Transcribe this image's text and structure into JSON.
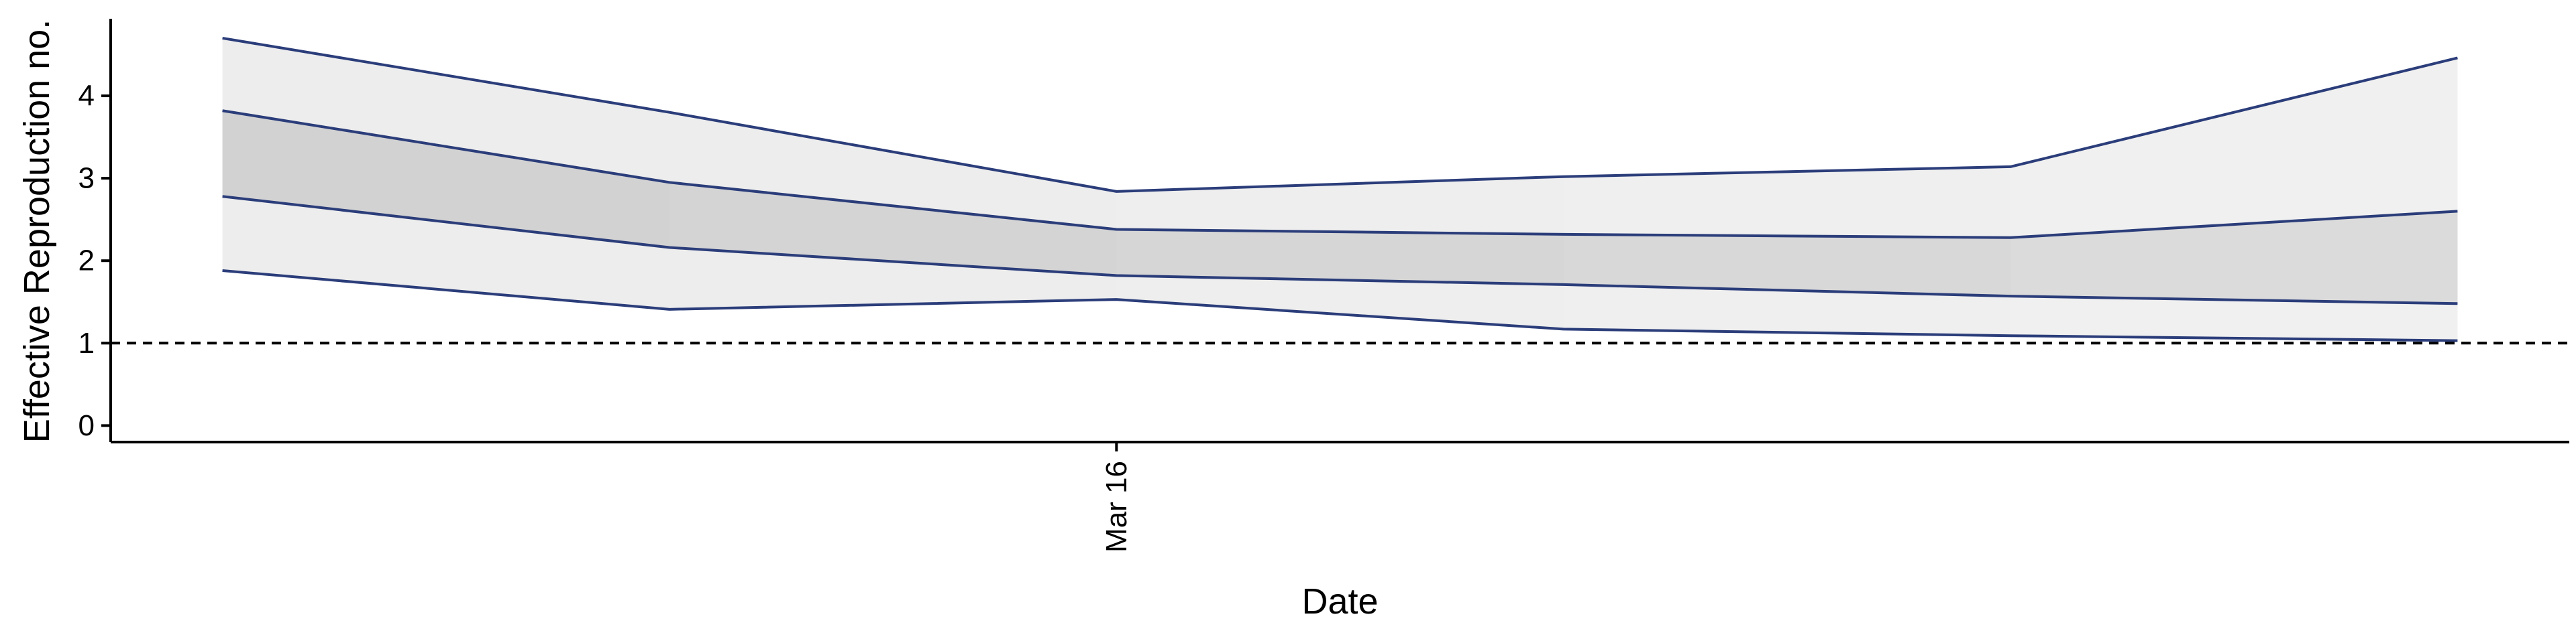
{
  "chart_data": {
    "type": "area",
    "title": "",
    "xlabel": "Date",
    "ylabel": "Effective Reproduction no.",
    "ylim": [
      -0.2,
      5.0
    ],
    "y_ticks": [
      0,
      1,
      2,
      3,
      4
    ],
    "x_tick_labels": [
      {
        "label": "Mar 16",
        "x": "2020-03-16"
      }
    ],
    "x_domain": [
      "2020-03-13.75",
      "2020-03-19.25"
    ],
    "x": [
      "2020-03-14",
      "2020-03-15",
      "2020-03-16",
      "2020-03-17",
      "2020-03-18",
      "2020-03-19"
    ],
    "bands": [
      {
        "lower": [
          1.88,
          1.41,
          1.53,
          1.17,
          1.09,
          1.03
        ],
        "upper": [
          4.7,
          3.8,
          2.84,
          3.02,
          3.14,
          4.46
        ]
      },
      {
        "lower": [
          2.78,
          2.16,
          1.82,
          1.71,
          1.57,
          1.48
        ],
        "upper": [
          3.82,
          2.95,
          2.38,
          2.32,
          2.28,
          2.6
        ]
      }
    ],
    "reference_line": {
      "y": 1,
      "style": "dashed"
    },
    "grid": false,
    "colors": {
      "line": "#2b3d7a",
      "band_outer": "#ededed",
      "band_inner": "#d2d2d2",
      "axis": "#000000",
      "reference": "#000000"
    }
  }
}
